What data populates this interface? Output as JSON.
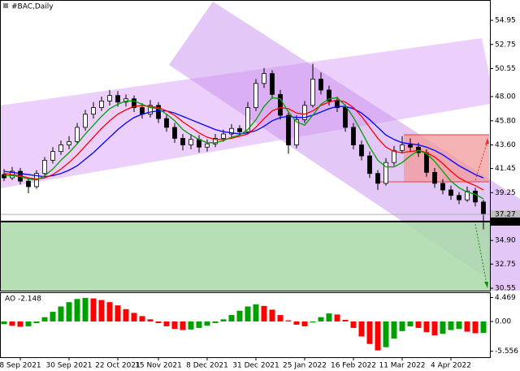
{
  "chart_data": [
    {
      "type": "candlestick",
      "title": "#BAC,Daily",
      "categories": [
        null,
        null,
        "8 Sep 2021",
        null,
        null,
        null,
        null,
        null,
        "30 Sep 2021",
        null,
        null,
        null,
        null,
        null,
        "22 Oct 2021",
        null,
        null,
        null,
        null,
        "15 Nov 2021",
        null,
        null,
        null,
        null,
        null,
        "8 Dec 2021",
        null,
        null,
        null,
        null,
        null,
        "31 Dec 2021",
        null,
        null,
        null,
        null,
        null,
        "25 Jan 2022",
        null,
        null,
        null,
        null,
        null,
        "16 Feb 2022",
        null,
        null,
        null,
        null,
        null,
        "11 Mar 2022",
        null,
        null,
        null,
        null,
        null,
        "4 Apr 2022",
        null,
        null,
        null,
        null
      ],
      "open": [
        40.9,
        40.6,
        41.2,
        40.3,
        39.8,
        41.0,
        42.2,
        43.0,
        43.6,
        43.9,
        45.2,
        46.4,
        47.0,
        47.6,
        48.1,
        47.5,
        47.8,
        47.0,
        46.4,
        47.2,
        46.0,
        45.2,
        44.2,
        43.6,
        44.1,
        43.4,
        43.7,
        44.2,
        44.6,
        45.1,
        44.8,
        47.0,
        49.2,
        50.1,
        48.2,
        46.3,
        43.6,
        45.9,
        47.2,
        49.6,
        48.6,
        47.6,
        47.0,
        45.2,
        43.6,
        42.6,
        41.0,
        40.1,
        42.0,
        43.1,
        43.6,
        43.4,
        42.9,
        41.1,
        40.1,
        39.5,
        39.0,
        38.6,
        39.4,
        38.4
      ],
      "high": [
        41.4,
        41.6,
        41.5,
        40.6,
        41.3,
        42.5,
        43.4,
        44.0,
        44.4,
        45.6,
        46.8,
        47.5,
        48.0,
        48.6,
        48.5,
        48.2,
        48.1,
        47.4,
        47.7,
        47.5,
        46.4,
        45.6,
        44.6,
        44.6,
        44.5,
        44.1,
        44.6,
        45.0,
        45.5,
        45.4,
        47.5,
        49.6,
        50.6,
        50.4,
        48.6,
        46.7,
        46.3,
        47.6,
        51.0,
        50.2,
        49.0,
        48.0,
        47.3,
        45.6,
        44.0,
        43.0,
        41.3,
        42.4,
        43.5,
        44.4,
        44.2,
        43.8,
        43.2,
        41.5,
        40.5,
        39.9,
        39.3,
        39.8,
        39.7,
        38.6
      ],
      "low": [
        40.3,
        40.4,
        40.0,
        39.2,
        39.6,
        40.8,
        41.9,
        42.7,
        43.2,
        43.7,
        44.9,
        46.0,
        46.7,
        47.2,
        47.1,
        47.1,
        46.6,
        46.0,
        46.1,
        45.6,
        44.8,
        43.8,
        43.1,
        43.2,
        42.9,
        43.0,
        43.4,
        43.9,
        44.2,
        44.4,
        44.6,
        46.7,
        48.8,
        47.8,
        45.9,
        42.8,
        43.3,
        45.6,
        47.0,
        48.2,
        47.2,
        46.6,
        44.8,
        43.2,
        42.2,
        40.6,
        39.5,
        39.9,
        41.7,
        42.8,
        43.0,
        42.5,
        40.7,
        39.7,
        39.1,
        38.6,
        38.2,
        38.4,
        38.0,
        35.9
      ],
      "close": [
        40.6,
        41.2,
        40.3,
        39.8,
        41.0,
        42.2,
        43.0,
        43.6,
        43.9,
        45.2,
        46.4,
        47.0,
        47.6,
        48.1,
        47.5,
        47.8,
        47.0,
        46.4,
        47.2,
        46.0,
        45.2,
        44.2,
        43.6,
        44.1,
        43.4,
        43.7,
        44.2,
        44.6,
        45.1,
        44.8,
        47.0,
        49.2,
        50.1,
        48.2,
        46.3,
        43.6,
        45.9,
        47.2,
        49.6,
        48.6,
        47.6,
        47.0,
        45.2,
        43.6,
        42.6,
        41.0,
        40.1,
        42.0,
        43.1,
        43.6,
        43.4,
        42.9,
        41.1,
        40.1,
        39.5,
        39.0,
        38.6,
        39.4,
        38.4,
        37.27
      ],
      "up_color": "#ffffff",
      "down_color": "#000000",
      "series": [
        {
          "color": "#0000ff",
          "values": [
            41.2,
            41.1,
            41.0,
            40.9,
            40.8,
            40.7,
            40.8,
            41.0,
            41.3,
            41.7,
            42.3,
            42.9,
            43.6,
            44.3,
            45.0,
            45.6,
            46.1,
            46.4,
            46.6,
            46.7,
            46.7,
            46.5,
            46.2,
            45.9,
            45.6,
            45.3,
            45.0,
            44.8,
            44.7,
            44.6,
            44.7,
            44.9,
            45.3,
            45.8,
            46.1,
            46.2,
            46.1,
            46.1,
            46.3,
            46.6,
            46.9,
            47.1,
            47.1,
            46.9,
            46.5,
            45.9,
            45.2,
            44.5,
            44.1,
            43.8,
            43.7,
            43.6,
            43.4,
            43.1,
            42.7,
            42.2,
            41.7,
            41.3,
            40.9,
            40.6
          ]
        },
        {
          "color": "#ff0000",
          "values": [
            41.0,
            40.9,
            40.8,
            40.6,
            40.5,
            40.6,
            40.9,
            41.4,
            42.0,
            42.7,
            43.5,
            44.3,
            45.1,
            45.8,
            46.4,
            46.8,
            47.1,
            47.2,
            47.1,
            47.0,
            46.7,
            46.3,
            45.7,
            45.2,
            44.7,
            44.3,
            44.1,
            44.1,
            44.2,
            44.4,
            44.6,
            45.2,
            46.0,
            46.7,
            47.0,
            46.9,
            46.5,
            46.4,
            46.7,
            47.2,
            47.5,
            47.7,
            47.5,
            47.0,
            46.2,
            45.2,
            44.2,
            43.4,
            43.0,
            42.9,
            43.0,
            43.1,
            42.9,
            42.5,
            41.9,
            41.2,
            40.6,
            40.2,
            39.9,
            39.5
          ]
        },
        {
          "color": "#00a000",
          "values": [
            40.8,
            40.8,
            40.7,
            40.5,
            40.4,
            40.8,
            41.4,
            42.2,
            42.9,
            43.7,
            44.6,
            45.4,
            46.2,
            46.9,
            47.3,
            47.6,
            47.6,
            47.3,
            47.0,
            46.9,
            46.4,
            45.8,
            45.0,
            44.5,
            44.1,
            43.8,
            43.8,
            44.0,
            44.3,
            44.5,
            45.0,
            45.9,
            47.1,
            47.9,
            47.8,
            46.6,
            45.7,
            45.4,
            46.3,
            47.3,
            47.8,
            47.9,
            47.2,
            46.1,
            44.8,
            43.4,
            42.2,
            41.6,
            41.6,
            42.0,
            42.6,
            43.1,
            42.8,
            42.1,
            41.2,
            40.3,
            39.7,
            39.3,
            39.1,
            38.7
          ]
        }
      ],
      "ylim": [
        30.33,
        56.8
      ],
      "yticks": [
        54.95,
        52.75,
        50.55,
        {
          "value": 48,
          "label": "48.00"
        },
        {
          "value": 45.8,
          "label": "45.80"
        },
        {
          "value": 43.6,
          "label": "43.60"
        },
        41.45,
        39.25,
        {
          "value": 34.9,
          "label": "34.90"
        },
        32.75,
        30.55
      ],
      "price_labels": [
        37.27,
        36.62
      ]
    },
    {
      "type": "bar",
      "title": "AO -2.148",
      "up_color": "#00a000",
      "down_color": "#ff0000",
      "values": [
        -0.5,
        -0.8,
        -1.0,
        -0.9,
        -0.3,
        0.8,
        1.8,
        2.8,
        3.6,
        4.2,
        4.4,
        4.3,
        4.0,
        3.6,
        3.0,
        2.3,
        1.6,
        1.0,
        0.4,
        -0.3,
        -0.9,
        -1.4,
        -1.6,
        -1.5,
        -1.2,
        -0.8,
        -0.3,
        0.4,
        1.2,
        2.0,
        2.8,
        3.2,
        2.9,
        2.2,
        1.2,
        0.2,
        -0.6,
        -0.9,
        -0.2,
        0.8,
        1.5,
        1.3,
        0.3,
        -1.2,
        -2.8,
        -4.2,
        -5.4,
        -4.8,
        -3.2,
        -1.8,
        -0.9,
        -1.2,
        -2.0,
        -2.6,
        -2.3,
        -1.6,
        -1.4,
        -1.9,
        -2.2,
        -2.148
      ],
      "ylim": [
        -6.67,
        5.3
      ],
      "yticks": [
        4.469,
        {
          "value": 0,
          "label": "0.00"
        },
        -5.556
      ]
    }
  ]
}
